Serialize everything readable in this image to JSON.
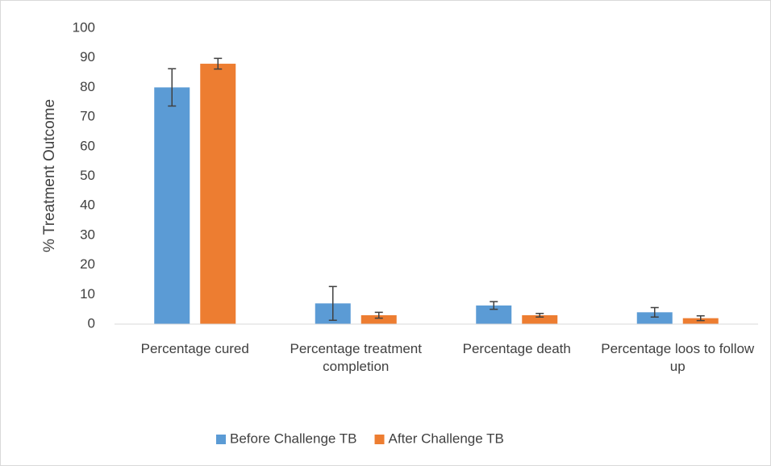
{
  "chart_data": {
    "type": "bar",
    "y_label": "% Treatment Outcome",
    "categories": [
      "Percentage cured",
      "Percentage treatment completion",
      "Percentage death",
      "Percentage loos to follow up"
    ],
    "series": [
      {
        "name": "Before Challenge TB",
        "color": "#5b9bd5",
        "values": [
          80,
          7,
          6.3,
          4
        ],
        "errors": [
          6.3,
          5.7,
          1.3,
          1.6
        ]
      },
      {
        "name": "After Challenge TB",
        "color": "#ed7d31",
        "values": [
          88,
          3,
          3,
          2
        ],
        "errors": [
          1.8,
          1,
          0.6,
          0.8
        ]
      }
    ],
    "ylim": [
      0,
      100
    ],
    "yticks": [
      0,
      10,
      20,
      30,
      40,
      50,
      60,
      70,
      80,
      90,
      100
    ],
    "grid": false,
    "legend": "bottom"
  }
}
